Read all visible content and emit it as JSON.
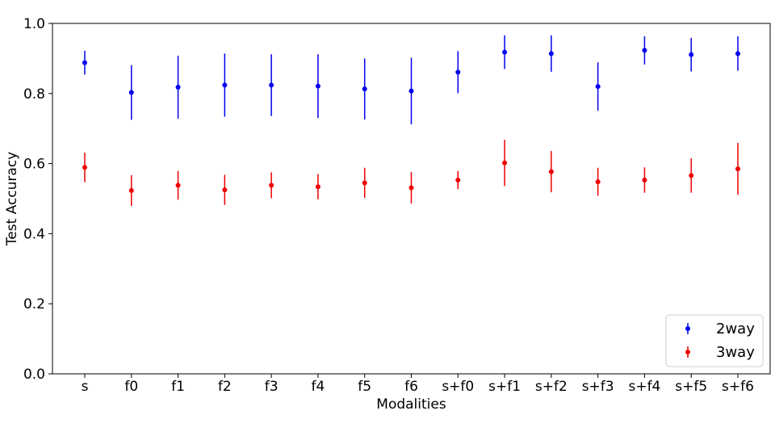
{
  "chart_data": {
    "type": "scatter",
    "xlabel": "Modalities",
    "ylabel": "Test Accuracy",
    "categories": [
      "s",
      "f0",
      "f1",
      "f2",
      "f3",
      "f4",
      "f5",
      "f6",
      "s+f0",
      "s+f1",
      "s+f2",
      "s+f3",
      "s+f4",
      "s+f5",
      "s+f6"
    ],
    "ylim": [
      0.0,
      1.0
    ],
    "yticks": [
      0.0,
      0.2,
      0.4,
      0.6,
      0.8,
      1.0
    ],
    "ytick_labels": [
      "0.0",
      "0.2",
      "0.4",
      "0.6",
      "0.8",
      "1.0"
    ],
    "grid": false,
    "legend_position": "bottom-right",
    "series": [
      {
        "name": "2way",
        "color": "#0000ee",
        "values": [
          0.888,
          0.803,
          0.818,
          0.824,
          0.824,
          0.821,
          0.813,
          0.807,
          0.861,
          0.918,
          0.914,
          0.82,
          0.923,
          0.911,
          0.914
        ],
        "errors": [
          0.034,
          0.078,
          0.09,
          0.09,
          0.088,
          0.091,
          0.087,
          0.095,
          0.06,
          0.048,
          0.052,
          0.069,
          0.04,
          0.048,
          0.049
        ]
      },
      {
        "name": "3way",
        "color": "#ee0000",
        "values": [
          0.589,
          0.523,
          0.538,
          0.525,
          0.538,
          0.534,
          0.545,
          0.531,
          0.553,
          0.602,
          0.577,
          0.548,
          0.553,
          0.566,
          0.585
        ],
        "errors": [
          0.042,
          0.044,
          0.041,
          0.043,
          0.037,
          0.036,
          0.043,
          0.045,
          0.026,
          0.066,
          0.059,
          0.04,
          0.036,
          0.049,
          0.074
        ]
      }
    ]
  }
}
